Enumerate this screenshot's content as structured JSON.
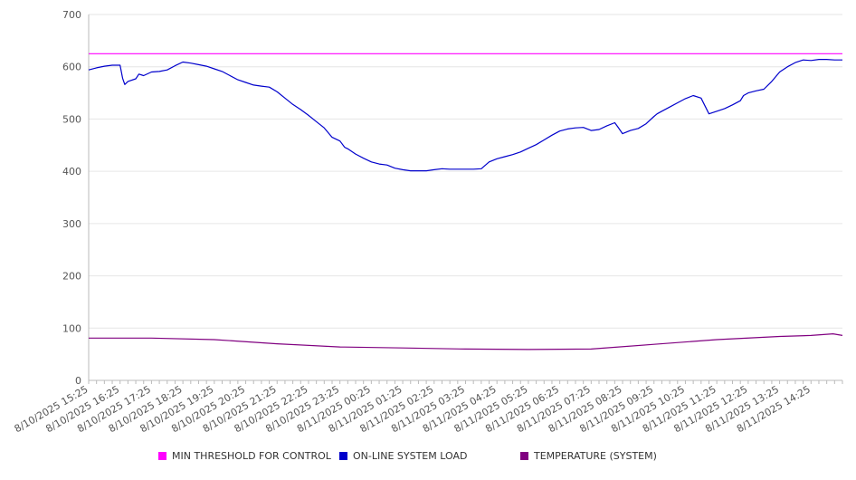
{
  "chart_data": {
    "type": "line",
    "title": "",
    "xlabel": "",
    "ylabel": "",
    "ylim": [
      0,
      700
    ],
    "y_ticks": [
      0,
      100,
      200,
      300,
      400,
      500,
      600,
      700
    ],
    "x_tick_labels": [
      "8/10/2025 15:25",
      "8/10/2025 16:25",
      "8/10/2025 17:25",
      "8/10/2025 18:25",
      "8/10/2025 19:25",
      "8/10/2025 20:25",
      "8/10/2025 21:25",
      "8/10/2025 22:25",
      "8/10/2025 23:25",
      "8/11/2025 00:25",
      "8/11/2025 01:25",
      "8/11/2025 02:25",
      "8/11/2025 03:25",
      "8/11/2025 04:25",
      "8/11/2025 05:25",
      "8/11/2025 06:25",
      "8/11/2025 07:25",
      "8/11/2025 08:25",
      "8/11/2025 09:25",
      "8/11/2025 10:25",
      "8/11/2025 11:25",
      "8/11/2025 12:25",
      "8/11/2025 13:25",
      "8/11/2025 14:25"
    ],
    "x_range_hours": [
      0,
      24
    ],
    "grid": true,
    "legend_position": "bottom",
    "series": [
      {
        "name": "MIN THRESHOLD FOR CONTROL",
        "color": "#ff00ff",
        "x": [
          0,
          24
        ],
        "values": [
          625,
          625
        ]
      },
      {
        "name": "ON-LINE SYSTEM LOAD",
        "color": "#0000cc",
        "x": [
          0,
          0.25,
          0.5,
          0.75,
          1.0,
          1.08,
          1.15,
          1.25,
          1.5,
          1.6,
          1.75,
          2.0,
          2.25,
          2.5,
          2.75,
          3.0,
          3.25,
          3.5,
          3.75,
          4.0,
          4.25,
          4.5,
          4.75,
          5.0,
          5.25,
          5.5,
          5.75,
          6.0,
          6.25,
          6.5,
          6.75,
          7.0,
          7.25,
          7.5,
          7.75,
          8.0,
          8.15,
          8.25,
          8.5,
          8.75,
          9.0,
          9.25,
          9.5,
          9.75,
          10.0,
          10.25,
          10.5,
          10.75,
          11.0,
          11.25,
          11.5,
          11.75,
          12.0,
          12.25,
          12.5,
          12.75,
          13.0,
          13.25,
          13.5,
          13.75,
          14.0,
          14.25,
          14.5,
          14.75,
          15.0,
          15.25,
          15.5,
          15.75,
          16.0,
          16.25,
          16.5,
          16.75,
          16.85,
          17.0,
          17.25,
          17.5,
          17.75,
          18.0,
          18.1,
          18.25,
          18.5,
          18.75,
          19.0,
          19.25,
          19.5,
          19.75,
          20.0,
          20.25,
          20.5,
          20.75,
          20.85,
          21.0,
          21.25,
          21.5,
          21.75,
          22.0,
          22.25,
          22.5,
          22.75,
          23.0,
          23.25,
          23.5,
          23.75,
          24.0
        ],
        "values": [
          594,
          598,
          601,
          603,
          603,
          578,
          566,
          572,
          577,
          586,
          583,
          590,
          591,
          594,
          602,
          609,
          607,
          604,
          601,
          596,
          591,
          583,
          575,
          570,
          565,
          563,
          561,
          552,
          540,
          528,
          518,
          507,
          495,
          483,
          465,
          458,
          446,
          443,
          433,
          425,
          418,
          414,
          412,
          406,
          403,
          401,
          401,
          401,
          403,
          405,
          404,
          404,
          404,
          404,
          405,
          418,
          424,
          428,
          432,
          437,
          444,
          451,
          460,
          469,
          477,
          481,
          483,
          484,
          478,
          480,
          487,
          493,
          485,
          472,
          478,
          482,
          491,
          505,
          510,
          515,
          523,
          531,
          539,
          545,
          540,
          510,
          515,
          520,
          527,
          535,
          545,
          550,
          554,
          557,
          572,
          590,
          600,
          608,
          613,
          612,
          614,
          614,
          613,
          613
        ],
        "values_note": ""
      },
      {
        "name": "TEMPERATURE (SYSTEM)",
        "color": "#800080",
        "x": [
          0,
          2,
          4,
          6,
          8,
          10,
          12,
          14,
          16,
          18,
          20,
          22,
          23,
          23.7,
          24
        ],
        "values": [
          81,
          81,
          78,
          70,
          64,
          62,
          60,
          59,
          60,
          69,
          78,
          84,
          86,
          89,
          86
        ]
      }
    ]
  },
  "legend": {
    "items": [
      {
        "label": "MIN THRESHOLD FOR CONTROL",
        "color": "#ff00ff"
      },
      {
        "label": "ON-LINE SYSTEM LOAD",
        "color": "#0000cc"
      },
      {
        "label": "TEMPERATURE (SYSTEM)",
        "color": "#800080"
      }
    ]
  }
}
